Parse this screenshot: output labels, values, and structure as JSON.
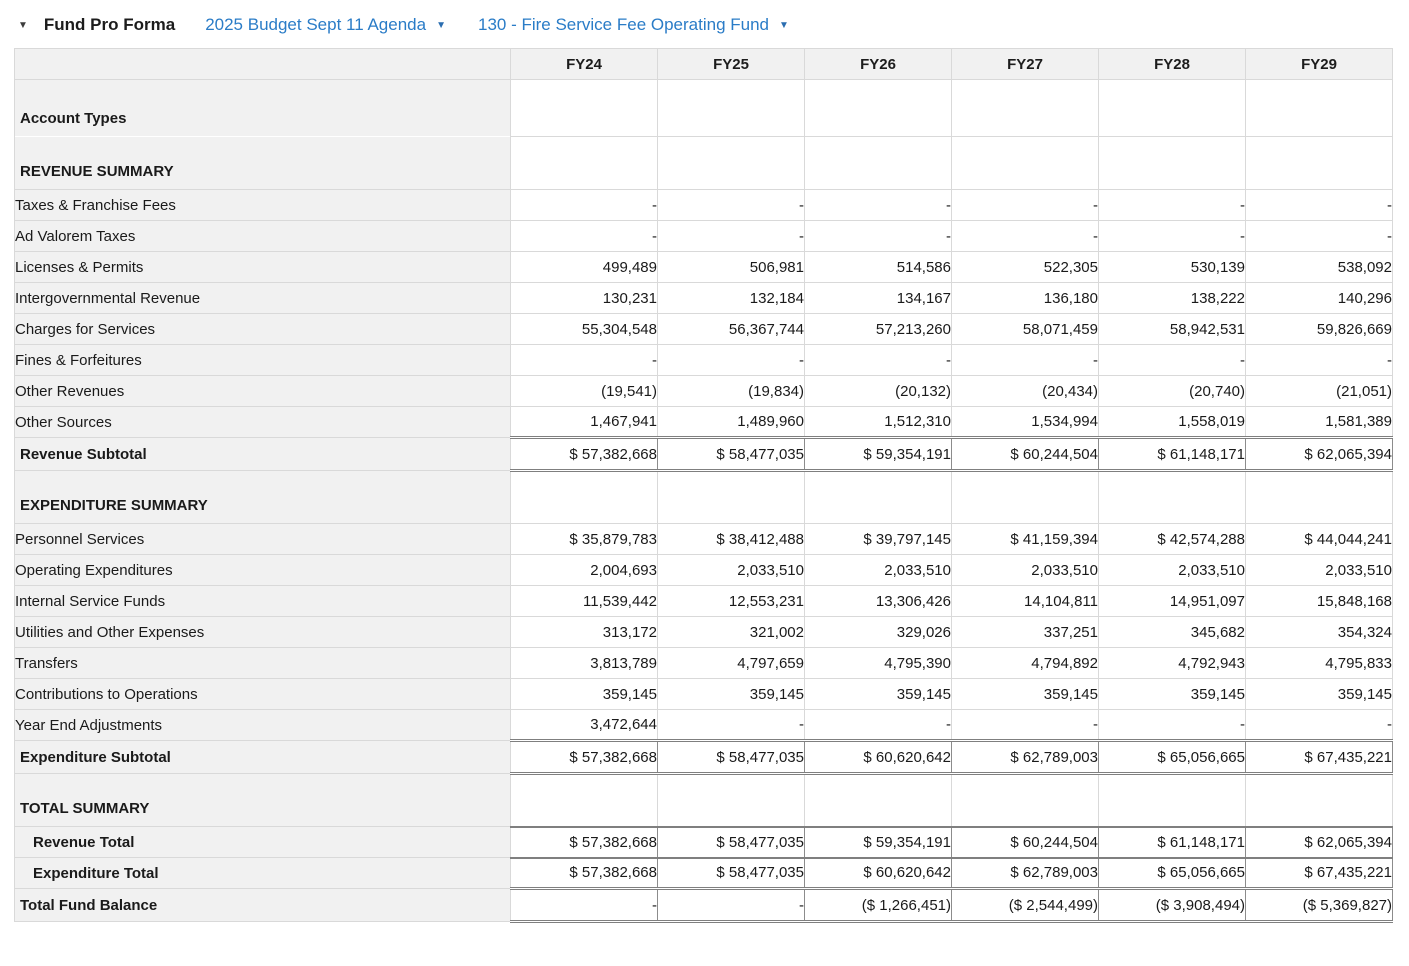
{
  "page": {
    "title": "Fund Pro Forma",
    "collapse_caret": "▼",
    "dropdowns": [
      {
        "label": "2025 Budget Sept 11 Agenda",
        "caret": "▼"
      },
      {
        "label": "130 - Fire Service Fee Operating Fund",
        "caret": "▼"
      }
    ]
  },
  "colors": {
    "link_blue": "#2a7cc7",
    "header_bg": "#f1f1f1",
    "border_light": "#d9d9d9",
    "border_dark": "#7f7f7f"
  },
  "table": {
    "column_headers": [
      "FY24",
      "FY25",
      "FY26",
      "FY27",
      "FY28",
      "FY29"
    ],
    "rows": [
      {
        "label": "Account Types",
        "type": "section",
        "label_merge": "below",
        "values": [
          "",
          "",
          "",
          "",
          "",
          ""
        ]
      },
      {
        "label": "REVENUE SUMMARY",
        "type": "section",
        "label_merge": "above",
        "values": [
          "",
          "",
          "",
          "",
          "",
          ""
        ]
      },
      {
        "label": "Taxes & Franchise Fees",
        "type": "detail",
        "values": [
          "-",
          "-",
          "-",
          "-",
          "-",
          "-"
        ]
      },
      {
        "label": "Ad Valorem Taxes",
        "type": "detail",
        "values": [
          "-",
          "-",
          "-",
          "-",
          "-",
          "-"
        ]
      },
      {
        "label": "Licenses & Permits",
        "type": "detail",
        "values": [
          "499,489",
          "506,981",
          "514,586",
          "522,305",
          "530,139",
          "538,092"
        ]
      },
      {
        "label": "Intergovernmental Revenue",
        "type": "detail",
        "values": [
          "130,231",
          "132,184",
          "134,167",
          "136,180",
          "138,222",
          "140,296"
        ]
      },
      {
        "label": "Charges for Services",
        "type": "detail",
        "values": [
          "55,304,548",
          "56,367,744",
          "57,213,260",
          "58,071,459",
          "58,942,531",
          "59,826,669"
        ]
      },
      {
        "label": "Fines & Forfeitures",
        "type": "detail",
        "values": [
          "-",
          "-",
          "-",
          "-",
          "-",
          "-"
        ]
      },
      {
        "label": "Other Revenues",
        "type": "detail",
        "values": [
          "(19,541)",
          "(19,834)",
          "(20,132)",
          "(20,434)",
          "(20,740)",
          "(21,051)"
        ]
      },
      {
        "label": "Other Sources",
        "type": "detail",
        "values": [
          "1,467,941",
          "1,489,960",
          "1,512,310",
          "1,534,994",
          "1,558,019",
          "1,581,389"
        ]
      },
      {
        "label": "Revenue Subtotal",
        "type": "subtotal",
        "values": [
          "$ 57,382,668",
          "$ 58,477,035",
          "$ 59,354,191",
          "$ 60,244,504",
          "$ 61,148,171",
          "$ 62,065,394"
        ]
      },
      {
        "label": "EXPENDITURE SUMMARY",
        "type": "section",
        "values": [
          "",
          "",
          "",
          "",
          "",
          ""
        ]
      },
      {
        "label": "Personnel Services",
        "type": "detail",
        "values": [
          "$ 35,879,783",
          "$ 38,412,488",
          "$ 39,797,145",
          "$ 41,159,394",
          "$ 42,574,288",
          "$ 44,044,241"
        ]
      },
      {
        "label": "Operating Expenditures",
        "type": "detail",
        "values": [
          "2,004,693",
          "2,033,510",
          "2,033,510",
          "2,033,510",
          "2,033,510",
          "2,033,510"
        ]
      },
      {
        "label": "Internal Service Funds",
        "type": "detail",
        "values": [
          "11,539,442",
          "12,553,231",
          "13,306,426",
          "14,104,811",
          "14,951,097",
          "15,848,168"
        ]
      },
      {
        "label": "Utilities and Other Expenses",
        "type": "detail",
        "values": [
          "313,172",
          "321,002",
          "329,026",
          "337,251",
          "345,682",
          "354,324"
        ]
      },
      {
        "label": "Transfers",
        "type": "detail",
        "values": [
          "3,813,789",
          "4,797,659",
          "4,795,390",
          "4,794,892",
          "4,792,943",
          "4,795,833"
        ]
      },
      {
        "label": "Contributions to Operations",
        "type": "detail",
        "values": [
          "359,145",
          "359,145",
          "359,145",
          "359,145",
          "359,145",
          "359,145"
        ]
      },
      {
        "label": "Year End Adjustments",
        "type": "detail",
        "values": [
          "3,472,644",
          "-",
          "-",
          "-",
          "-",
          "-"
        ]
      },
      {
        "label": "Expenditure Subtotal",
        "type": "subtotal",
        "values": [
          "$ 57,382,668",
          "$ 58,477,035",
          "$ 60,620,642",
          "$ 62,789,003",
          "$ 65,056,665",
          "$ 67,435,221"
        ]
      },
      {
        "label": "TOTAL SUMMARY",
        "type": "section",
        "values": [
          "",
          "",
          "",
          "",
          "",
          ""
        ]
      },
      {
        "label": "Revenue Total",
        "type": "total",
        "values": [
          "$ 57,382,668",
          "$ 58,477,035",
          "$ 59,354,191",
          "$ 60,244,504",
          "$ 61,148,171",
          "$ 62,065,394"
        ]
      },
      {
        "label": "Expenditure Total",
        "type": "total",
        "values": [
          "$ 57,382,668",
          "$ 58,477,035",
          "$ 60,620,642",
          "$ 62,789,003",
          "$ 65,056,665",
          "$ 67,435,221"
        ]
      },
      {
        "label": "Total Fund Balance",
        "type": "grand",
        "values": [
          "-",
          "-",
          "($ 1,266,451)",
          "($ 2,544,499)",
          "($ 3,908,494)",
          "($ 5,369,827)"
        ]
      }
    ]
  }
}
